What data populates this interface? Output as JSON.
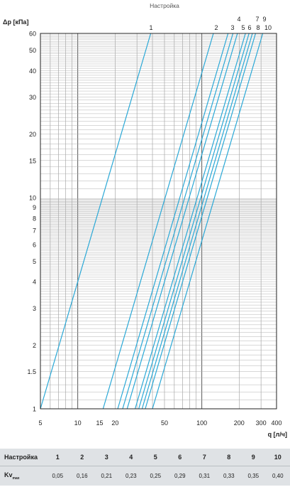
{
  "chart_data": {
    "type": "line",
    "title": "Настройка",
    "ylabel": "Δp [кПа]",
    "xlabel": "q [л/ч]",
    "x_scale": "log",
    "y_scale": "log",
    "xlim": [
      5,
      400
    ],
    "ylim": [
      1,
      60
    ],
    "x_ticks": [
      5,
      10,
      15,
      20,
      50,
      100,
      200,
      300,
      400
    ],
    "y_ticks": [
      1,
      1.5,
      2,
      3,
      4,
      5,
      6,
      7,
      8,
      9,
      10,
      15,
      20,
      30,
      40,
      50,
      60
    ],
    "grid": true,
    "series_color": "#2aa8d6",
    "series": [
      {
        "name": "1",
        "kv": 0.05
      },
      {
        "name": "2",
        "kv": 0.16
      },
      {
        "name": "3",
        "kv": 0.21
      },
      {
        "name": "4",
        "kv": 0.23
      },
      {
        "name": "5",
        "kv": 0.25
      },
      {
        "name": "6",
        "kv": 0.29
      },
      {
        "name": "7",
        "kv": 0.31
      },
      {
        "name": "8",
        "kv": 0.33
      },
      {
        "name": "9",
        "kv": 0.35
      },
      {
        "name": "10",
        "kv": 0.4
      }
    ]
  },
  "table": {
    "header_label": "Настройка",
    "row_label_main": "Kv",
    "row_label_sub": "max",
    "settings": [
      "1",
      "2",
      "3",
      "4",
      "5",
      "6",
      "7",
      "8",
      "9",
      "10"
    ],
    "kv_values": [
      "0,05",
      "0,16",
      "0,21",
      "0,23",
      "0,25",
      "0,29",
      "0,31",
      "0,33",
      "0,35",
      "0,40"
    ]
  }
}
